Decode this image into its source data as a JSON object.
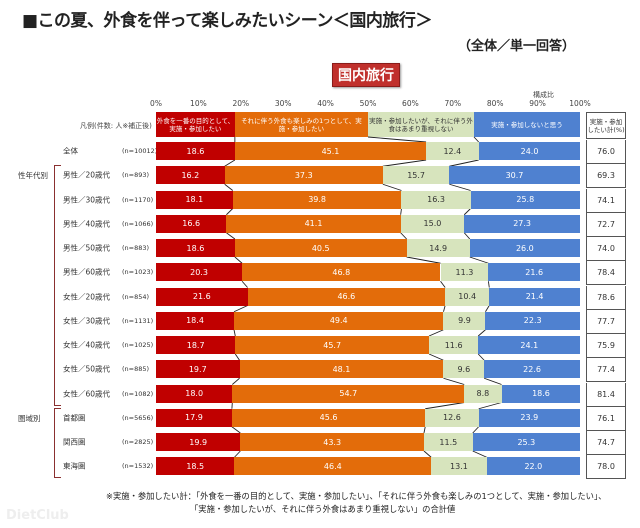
{
  "title": "■この夏、外食を伴って楽しみたいシーン＜国内旅行＞",
  "subtitle": "（全体／単一回答）",
  "badge": "国内旅行",
  "ratio_label": "構成比",
  "legend_caption": "凡例(件数: 人※補正後)",
  "total_header": "実施・参加したい計(%)",
  "footnote": {
    "line1": "※実施・参加したい計：「外食を一番の目的として、実施・参加したい」、「それに伴う外食も楽しみの1つとして、実施・参加したい」、",
    "line2": "「実施・参加したいが、それに伴う外食はあまり重視しない」の合計値"
  },
  "watermark": "DietClub",
  "groups": [
    {
      "label": "性年代別",
      "from": 1,
      "to": 10
    },
    {
      "label": "圏域別",
      "from": 11,
      "to": 13
    }
  ],
  "chart_data": {
    "type": "bar",
    "orientation": "horizontal-stacked-100",
    "title": "■この夏、外食を伴って楽しみたいシーン＜国内旅行＞",
    "xlabel": "構成比",
    "xlim": [
      0,
      100
    ],
    "ticks": [
      "0%",
      "10%",
      "20%",
      "30%",
      "40%",
      "50%",
      "60%",
      "70%",
      "80%",
      "90%",
      "100%"
    ],
    "legend_placement": "top",
    "series": [
      {
        "name": "外食を一番の目的として、実施・参加したい",
        "color": "#c00000",
        "text_color": "#ffffff",
        "values": [
          18.6,
          16.2,
          18.1,
          16.6,
          18.6,
          20.3,
          21.6,
          18.4,
          18.7,
          19.7,
          18.0,
          17.9,
          19.9,
          18.5
        ]
      },
      {
        "name": "それに伴う外食も楽しみの1つとして、実施・参加したい",
        "color": "#e36c0a",
        "text_color": "#ffffff",
        "values": [
          45.1,
          37.3,
          39.8,
          41.1,
          40.5,
          46.8,
          46.6,
          49.4,
          45.7,
          48.1,
          54.7,
          45.6,
          43.3,
          46.4
        ]
      },
      {
        "name": "実施・参加したいが、それに伴う外食はあまり重視しない",
        "color": "#d7e4bd",
        "text_color": "#333333",
        "values": [
          12.4,
          15.7,
          16.3,
          15.0,
          14.9,
          11.3,
          10.4,
          9.9,
          11.6,
          9.6,
          8.8,
          12.6,
          11.5,
          13.1
        ]
      },
      {
        "name": "実施・参加しないと思う",
        "color": "#4f81d0",
        "text_color": "#ffffff",
        "values": [
          24.0,
          30.7,
          25.8,
          27.3,
          26.0,
          21.6,
          21.4,
          22.3,
          24.1,
          22.6,
          18.6,
          23.9,
          25.3,
          22.0
        ]
      }
    ],
    "categories": [
      "全体",
      "男性／20歳代",
      "男性／30歳代",
      "男性／40歳代",
      "男性／50歳代",
      "男性／60歳代",
      "女性／20歳代",
      "女性／30歳代",
      "女性／40歳代",
      "女性／50歳代",
      "女性／60歳代",
      "首都圏",
      "関西圏",
      "東海圏"
    ],
    "n": [
      "(n=10012)",
      "(n=893)",
      "(n=1170)",
      "(n=1066)",
      "(n=883)",
      "(n=1023)",
      "(n=854)",
      "(n=1131)",
      "(n=1025)",
      "(n=885)",
      "(n=1082)",
      "(n=5656)",
      "(n=2825)",
      "(n=1532)"
    ],
    "total_wish": [
      76.0,
      69.3,
      74.1,
      72.7,
      74.0,
      78.4,
      78.6,
      77.7,
      75.9,
      77.4,
      81.4,
      76.1,
      74.7,
      78.0
    ]
  }
}
